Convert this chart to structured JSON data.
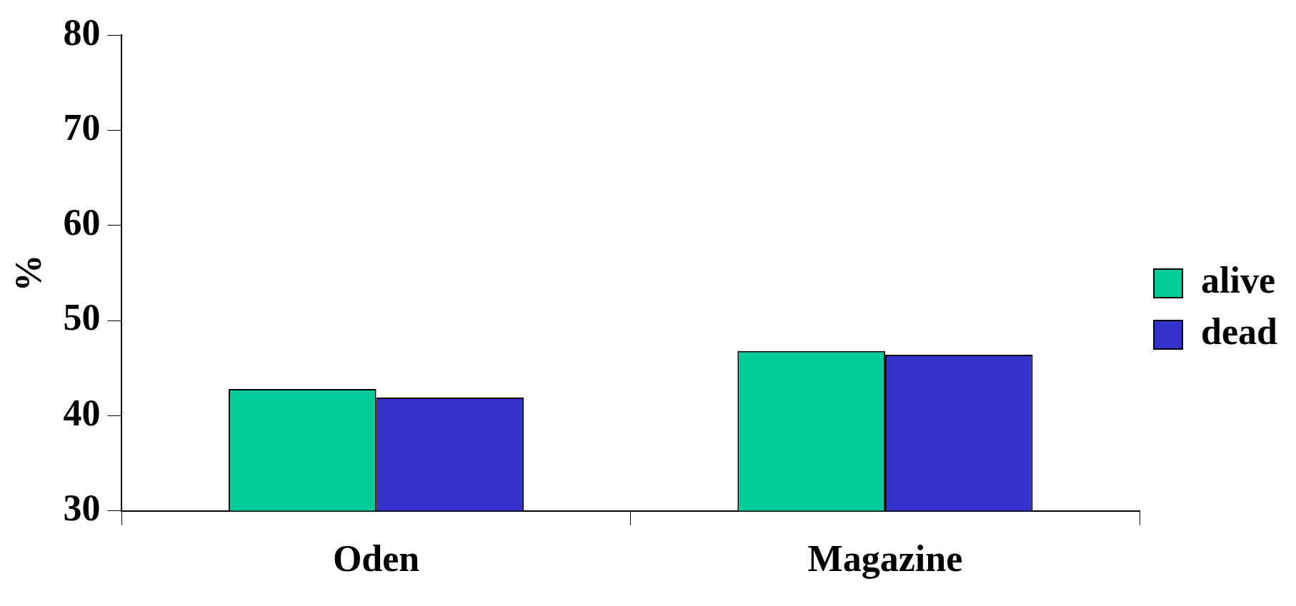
{
  "chart_data": {
    "type": "bar",
    "ylabel": "%",
    "categories": [
      "Oden",
      "Magazine"
    ],
    "series": [
      {
        "name": "alive",
        "color": "#00cc99",
        "values": [
          42.8,
          46.8
        ]
      },
      {
        "name": "dead",
        "color": "#3333cc",
        "values": [
          41.9,
          46.4
        ]
      }
    ],
    "ylim": [
      30,
      80
    ],
    "yticks": [
      30,
      40,
      50,
      60,
      70,
      80
    ],
    "grid": false,
    "legend": "right"
  }
}
